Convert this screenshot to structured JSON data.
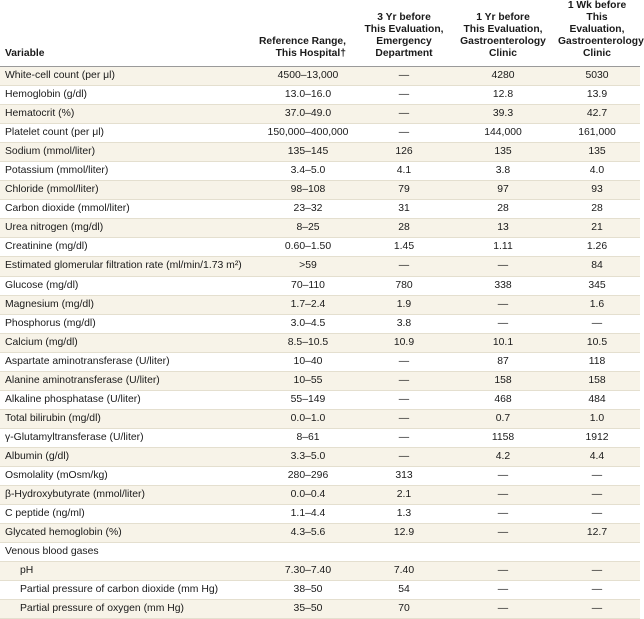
{
  "headers": {
    "variable": "Variable",
    "reference": [
      "Reference Range,",
      "This Hospital†"
    ],
    "col3yr": [
      "3 Yr before",
      "This Evaluation,",
      "Emergency",
      "Department"
    ],
    "col1yr": [
      "1 Yr before",
      "This Evaluation,",
      "Gastroenterology",
      "Clinic"
    ],
    "col1wk": [
      "1 Wk before",
      "This Evaluation,",
      "Gastroenterology",
      "Clinic"
    ]
  },
  "rows": [
    {
      "variable": "White-cell count (per μl)",
      "reference": "4500–13,000",
      "yr3": "—",
      "yr1": "4280",
      "wk1": "5030"
    },
    {
      "variable": "Hemoglobin (g/dl)",
      "reference": "13.0–16.0",
      "yr3": "—",
      "yr1": "12.8",
      "wk1": "13.9"
    },
    {
      "variable": "Hematocrit (%)",
      "reference": "37.0–49.0",
      "yr3": "—",
      "yr1": "39.3",
      "wk1": "42.7"
    },
    {
      "variable": "Platelet count (per μl)",
      "reference": "150,000–400,000",
      "yr3": "—",
      "yr1": "144,000",
      "wk1": "161,000"
    },
    {
      "variable": "Sodium (mmol/liter)",
      "reference": "135–145",
      "yr3": "126",
      "yr1": "135",
      "wk1": "135"
    },
    {
      "variable": "Potassium (mmol/liter)",
      "reference": "3.4–5.0",
      "yr3": "4.1",
      "yr1": "3.8",
      "wk1": "4.0"
    },
    {
      "variable": "Chloride (mmol/liter)",
      "reference": "98–108",
      "yr3": "79",
      "yr1": "97",
      "wk1": "93"
    },
    {
      "variable": "Carbon dioxide (mmol/liter)",
      "reference": "23–32",
      "yr3": "31",
      "yr1": "28",
      "wk1": "28"
    },
    {
      "variable": "Urea nitrogen (mg/dl)",
      "reference": "8–25",
      "yr3": "28",
      "yr1": "13",
      "wk1": "21"
    },
    {
      "variable": "Creatinine (mg/dl)",
      "reference": "0.60–1.50",
      "yr3": "1.45",
      "yr1": "1.11",
      "wk1": "1.26"
    },
    {
      "variable": "Estimated glomerular filtration rate (ml/min/1.73 m²)",
      "reference": ">59",
      "yr3": "—",
      "yr1": "—",
      "wk1": "84"
    },
    {
      "variable": "Glucose (mg/dl)",
      "reference": "70–110",
      "yr3": "780",
      "yr1": "338",
      "wk1": "345"
    },
    {
      "variable": "Magnesium (mg/dl)",
      "reference": "1.7–2.4",
      "yr3": "1.9",
      "yr1": "—",
      "wk1": "1.6"
    },
    {
      "variable": "Phosphorus (mg/dl)",
      "reference": "3.0–4.5",
      "yr3": "3.8",
      "yr1": "—",
      "wk1": "—"
    },
    {
      "variable": "Calcium (mg/dl)",
      "reference": "8.5–10.5",
      "yr3": "10.9",
      "yr1": "10.1",
      "wk1": "10.5"
    },
    {
      "variable": "Aspartate aminotransferase (U/liter)",
      "reference": "10–40",
      "yr3": "—",
      "yr1": "87",
      "wk1": "118"
    },
    {
      "variable": "Alanine aminotransferase (U/liter)",
      "reference": "10–55",
      "yr3": "—",
      "yr1": "158",
      "wk1": "158"
    },
    {
      "variable": "Alkaline phosphatase (U/liter)",
      "reference": "55–149",
      "yr3": "—",
      "yr1": "468",
      "wk1": "484"
    },
    {
      "variable": "Total bilirubin (mg/dl)",
      "reference": "0.0–1.0",
      "yr3": "—",
      "yr1": "0.7",
      "wk1": "1.0"
    },
    {
      "variable": "γ-Glutamyltransferase (U/liter)",
      "reference": "8–61",
      "yr3": "—",
      "yr1": "1158",
      "wk1": "1912"
    },
    {
      "variable": "Albumin (g/dl)",
      "reference": "3.3–5.0",
      "yr3": "—",
      "yr1": "4.2",
      "wk1": "4.4"
    },
    {
      "variable": "Osmolality (mOsm/kg)",
      "reference": "280–296",
      "yr3": "313",
      "yr1": "—",
      "wk1": "—"
    },
    {
      "variable": "β-Hydroxybutyrate (mmol/liter)",
      "reference": "0.0–0.4",
      "yr3": "2.1",
      "yr1": "—",
      "wk1": "—"
    },
    {
      "variable": "C peptide (ng/ml)",
      "reference": "1.1–4.4",
      "yr3": "1.3",
      "yr1": "—",
      "wk1": "—"
    },
    {
      "variable": "Glycated hemoglobin (%)",
      "reference": "4.3–5.6",
      "yr3": "12.9",
      "yr1": "—",
      "wk1": "12.7"
    },
    {
      "variable": "Venous blood gases",
      "reference": "",
      "yr3": "",
      "yr1": "",
      "wk1": "",
      "section": true
    },
    {
      "variable": "pH",
      "reference": "7.30–7.40",
      "yr3": "7.40",
      "yr1": "—",
      "wk1": "—",
      "indent": true
    },
    {
      "variable": "Partial pressure of carbon dioxide (mm Hg)",
      "reference": "38–50",
      "yr3": "54",
      "yr1": "—",
      "wk1": "—",
      "indent": true
    },
    {
      "variable": "Partial pressure of oxygen (mm Hg)",
      "reference": "35–50",
      "yr3": "70",
      "yr1": "—",
      "wk1": "—",
      "indent": true
    }
  ]
}
